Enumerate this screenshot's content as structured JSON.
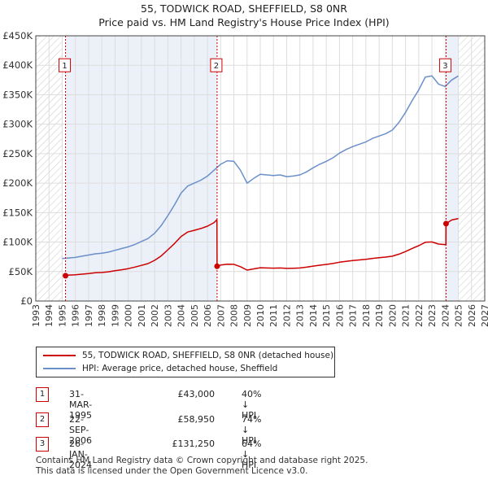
{
  "title": {
    "line1": "55, TODWICK ROAD, SHEFFIELD, S8 0NR",
    "line2": "Price paid vs. HM Land Registry's House Price Index (HPI)"
  },
  "chart_data": {
    "type": "line",
    "title": "55, TODWICK ROAD, SHEFFIELD, S8 0NR",
    "subtitle": "Price paid vs. HM Land Registry's House Price Index (HPI)",
    "xlim": [
      1993,
      2027
    ],
    "ylim": [
      0,
      450000
    ],
    "x_ticks": [
      1993,
      1994,
      1995,
      1996,
      1997,
      1998,
      1999,
      2000,
      2001,
      2002,
      2003,
      2004,
      2005,
      2006,
      2007,
      2008,
      2009,
      2010,
      2011,
      2012,
      2013,
      2014,
      2015,
      2016,
      2017,
      2018,
      2019,
      2020,
      2021,
      2022,
      2023,
      2024,
      2025,
      2026,
      2027
    ],
    "y_ticks": [
      {
        "value": 0,
        "label": "£0"
      },
      {
        "value": 50000,
        "label": "£50K"
      },
      {
        "value": 100000,
        "label": "£100K"
      },
      {
        "value": 150000,
        "label": "£150K"
      },
      {
        "value": 200000,
        "label": "£200K"
      },
      {
        "value": 250000,
        "label": "£250K"
      },
      {
        "value": 300000,
        "label": "£300K"
      },
      {
        "value": 350000,
        "label": "£350K"
      },
      {
        "value": 400000,
        "label": "£400K"
      },
      {
        "value": 450000,
        "label": "£450K"
      }
    ],
    "grid": true,
    "hatched_before": 1995,
    "hatched_after": 2025,
    "sale_periods": [
      [
        1995.25,
        2006.73
      ],
      [
        2024.07,
        2025.0
      ]
    ],
    "series": [
      {
        "name": "HPI: Average price, detached house, Sheffield",
        "color": "#6b8fc9",
        "x": [
          1995.0,
          1995.5,
          1996,
          1996.5,
          1997,
          1997.5,
          1998,
          1998.5,
          1999,
          1999.5,
          2000,
          2000.5,
          2001,
          2001.5,
          2002,
          2002.5,
          2003,
          2003.5,
          2004,
          2004.5,
          2005,
          2005.5,
          2006,
          2006.5,
          2007,
          2007.5,
          2008,
          2008.5,
          2009,
          2009.5,
          2010,
          2010.5,
          2011,
          2011.5,
          2012,
          2012.5,
          2013,
          2013.5,
          2014,
          2014.5,
          2015,
          2015.5,
          2016,
          2016.5,
          2017,
          2017.5,
          2018,
          2018.5,
          2019,
          2019.5,
          2020,
          2020.5,
          2021,
          2021.5,
          2022,
          2022.5,
          2023,
          2023.5,
          2024,
          2024.5,
          2025.0
        ],
        "values": [
          72000,
          73000,
          74000,
          76000,
          78000,
          80000,
          81000,
          83000,
          86000,
          89000,
          92000,
          96000,
          101000,
          106000,
          115000,
          128000,
          145000,
          163000,
          183000,
          195000,
          200000,
          205000,
          212000,
          222000,
          232000,
          238000,
          237000,
          222000,
          200000,
          208000,
          215000,
          214000,
          213000,
          214000,
          211000,
          212000,
          214000,
          219000,
          226000,
          232000,
          237000,
          243000,
          251000,
          257000,
          262000,
          266000,
          270000,
          276000,
          280000,
          284000,
          290000,
          303000,
          320000,
          340000,
          358000,
          380000,
          382000,
          368000,
          364000,
          375000,
          382000
        ]
      },
      {
        "name": "55, TODWICK ROAD, SHEFFIELD, S8 0NR (detached house)",
        "color": "#cc0000",
        "x": [
          1995.25,
          1995.5,
          1996,
          1996.5,
          1997,
          1997.5,
          1998,
          1998.5,
          1999,
          1999.5,
          2000,
          2000.5,
          2001,
          2001.5,
          2002,
          2002.5,
          2003,
          2003.5,
          2004,
          2004.5,
          2005,
          2005.5,
          2006,
          2006.5,
          2006.72,
          2006.73,
          2007,
          2007.5,
          2008,
          2008.5,
          2009,
          2009.5,
          2010,
          2010.5,
          2011,
          2011.5,
          2012,
          2012.5,
          2013,
          2013.5,
          2014,
          2014.5,
          2015,
          2015.5,
          2016,
          2016.5,
          2017,
          2017.5,
          2018,
          2018.5,
          2019,
          2019.5,
          2020,
          2020.5,
          2021,
          2021.5,
          2022,
          2022.5,
          2023,
          2023.5,
          2024.06,
          2024.07,
          2024.5,
          2025.0
        ],
        "values": [
          43000,
          44000,
          44500,
          45500,
          46500,
          48000,
          48500,
          49500,
          51500,
          53000,
          55000,
          57500,
          60500,
          63500,
          69000,
          76500,
          87000,
          97500,
          109500,
          117000,
          120000,
          123000,
          127000,
          133000,
          138000,
          58950,
          61000,
          62500,
          62300,
          58300,
          52500,
          54500,
          56400,
          56100,
          55800,
          56100,
          55300,
          55600,
          56100,
          57400,
          59200,
          60800,
          62100,
          63700,
          65800,
          67400,
          68700,
          69700,
          70800,
          72300,
          73400,
          74500,
          76100,
          79500,
          83900,
          89200,
          93900,
          99700,
          100200,
          96600,
          95500,
          131250,
          137500,
          140000
        ]
      }
    ],
    "annotations": [
      {
        "label": "1",
        "x": 1995.25,
        "y": 43000,
        "box_y": 400000
      },
      {
        "label": "2",
        "x": 2006.73,
        "y": 58950,
        "box_y": 400000
      },
      {
        "label": "3",
        "x": 2024.07,
        "y": 131250,
        "box_y": 400000
      }
    ]
  },
  "legend": {
    "items": [
      {
        "label": "55, TODWICK ROAD, SHEFFIELD, S8 0NR (detached house)",
        "color": "#cc0000"
      },
      {
        "label": "HPI: Average price, detached house, Sheffield",
        "color": "#6b8fc9"
      }
    ]
  },
  "transactions": [
    {
      "id": "1",
      "date": "31-MAR-1995",
      "price": "£43,000",
      "hpi": "40% ↓ HPI"
    },
    {
      "id": "2",
      "date": "22-SEP-2006",
      "price": "£58,950",
      "hpi": "74% ↓ HPI"
    },
    {
      "id": "3",
      "date": "26-JAN-2024",
      "price": "£131,250",
      "hpi": "64% ↓ HPI"
    }
  ],
  "footer": {
    "line1": "Contains HM Land Registry data © Crown copyright and database right 2025.",
    "line2": "This data is licensed under the Open Government Licence v3.0."
  }
}
